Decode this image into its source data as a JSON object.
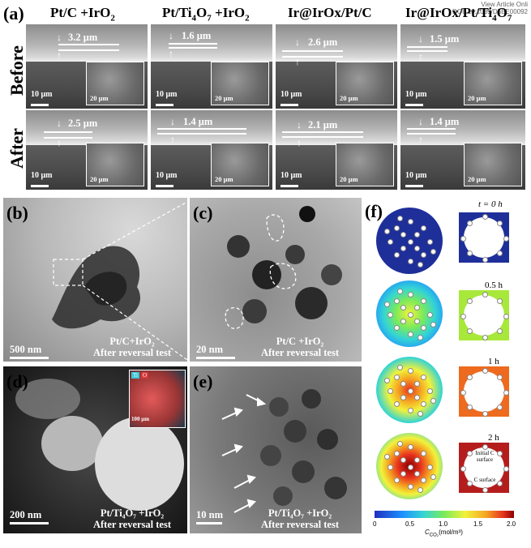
{
  "watermark": {
    "line1": "View Article Onli",
    "line2": "DOI: 10.1039/D5EE00092"
  },
  "panel_a": {
    "letter": "(a)",
    "columns": [
      {
        "title": "Pt/C +IrO",
        "sub": "2",
        "tail": ""
      },
      {
        "title": "Pt/Ti",
        "sub": "4",
        "mid": "O",
        "sub2": "7",
        "tail": " +IrO",
        "sub3": "2"
      },
      {
        "title": "Ir@IrOx/Pt/C"
      },
      {
        "title": "Ir@IrOx/Pt/Ti",
        "sub": "4",
        "tail": "O",
        "sub2": "7"
      }
    ],
    "rows": [
      "Before",
      "After"
    ],
    "before_thickness": [
      "3.2 μm",
      "1.6 μm",
      "2.6 μm",
      "1.5 μm"
    ],
    "after_thickness": [
      "2.5 μm",
      "1.4 μm",
      "2.1 μm",
      "1.4 μm"
    ],
    "scale_main": "10 μm",
    "scale_inset": "20 μm"
  },
  "panel_b": {
    "letter": "(b)",
    "scale": "500 nm",
    "label1": "Pt/C+IrO₂",
    "label2": "After reversal test"
  },
  "panel_c": {
    "letter": "(c)",
    "scale": "20 nm",
    "label1": "Pt/C +IrO₂",
    "label2": "After reversal test"
  },
  "panel_d": {
    "letter": "(d)",
    "scale": "200 nm",
    "label1": "Pt/Ti₄O₇ +IrO₂",
    "label2": "After reversal test",
    "inset_ti": "Ti",
    "inset_o": "O",
    "inset_scale": "100 μm"
  },
  "panel_e": {
    "letter": "(e)",
    "scale": "10 nm",
    "label1": "Pt/Ti₄O₇ +IrO₂",
    "label2": "After reversal test"
  },
  "panel_f": {
    "letter": "(f)",
    "times": [
      "t = 0 h",
      "0.5 h",
      "1 h",
      "2 h"
    ],
    "annot_initial": "Initial C surface",
    "annot_c": "C surface",
    "colorbar_label": "C",
    "colorbar_sub": "CO₂",
    "colorbar_unit": "(mol/m³)",
    "ticks": [
      "0",
      "0.5",
      "1.0",
      "1.5",
      "2.0"
    ]
  }
}
